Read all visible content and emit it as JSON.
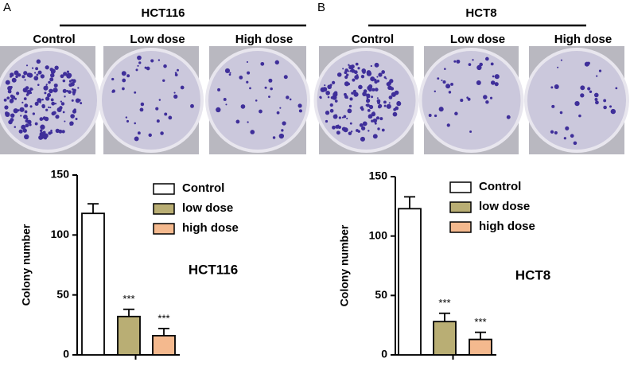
{
  "panels": [
    {
      "label": "A",
      "cell_line": "HCT116",
      "conditions": [
        "Control",
        "Low dose",
        "High dose"
      ]
    },
    {
      "label": "B",
      "cell_line": "HCT8",
      "conditions": [
        "Control",
        "Low dose",
        "High dose"
      ]
    }
  ],
  "chart_data": [
    {
      "type": "bar",
      "ylabel": "Colony number",
      "annotation": "HCT116",
      "ylim": [
        0,
        150
      ],
      "yticks": [
        0,
        50,
        100,
        150
      ],
      "legend": "upper-right",
      "series": [
        {
          "name": "Control",
          "color": "#ffffff",
          "values": [
            118
          ],
          "errors": [
            8
          ]
        },
        {
          "name": "low dose",
          "color": "#b9ae74",
          "values": [
            32
          ],
          "errors": [
            6
          ],
          "significance": "***"
        },
        {
          "name": "high dose",
          "color": "#f4b98e",
          "values": [
            16
          ],
          "errors": [
            6
          ],
          "significance": "***"
        }
      ]
    },
    {
      "type": "bar",
      "ylabel": "Colony number",
      "annotation": "HCT8",
      "ylim": [
        0,
        150
      ],
      "yticks": [
        0,
        50,
        100,
        150
      ],
      "legend": "upper-right",
      "series": [
        {
          "name": "Control",
          "color": "#ffffff",
          "values": [
            123
          ],
          "errors": [
            10
          ]
        },
        {
          "name": "low dose",
          "color": "#b9ae74",
          "values": [
            28
          ],
          "errors": [
            7
          ],
          "significance": "***"
        },
        {
          "name": "high dose",
          "color": "#f4b98e",
          "values": [
            13
          ],
          "errors": [
            6
          ],
          "significance": "***"
        }
      ]
    }
  ]
}
